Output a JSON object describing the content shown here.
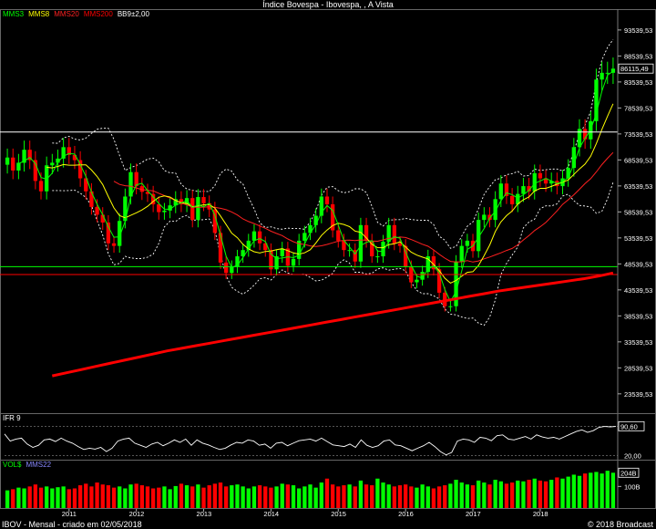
{
  "title": "Índice Bovespa - Ibovespa, , A Vista",
  "colors": {
    "up": "#00ff00",
    "down": "#ff0000",
    "mms3": "#00ff00",
    "mms8": "#ffff00",
    "mms20": "#ff2020",
    "mms200": "#ff0000",
    "bb": "#ffffff",
    "bg": "#000000"
  },
  "main_legend": {
    "mms3": "MMS3",
    "mms8": "MMS8",
    "mms20": "MMS20",
    "mms200": "MMS200",
    "bb": "BB9±2,00"
  },
  "ifr_legend": {
    "label": "IFR 9"
  },
  "vol_legend": {
    "label": "VOL$",
    "ma": "MMS22"
  },
  "footer": {
    "left": "IBOV - Mensal - criado em 02/05/2018",
    "right": "© 2018 Broadcast"
  },
  "chart_data": [
    {
      "type": "candlestick",
      "title": "Índice Bovespa - Ibovespa, , A Vista",
      "y_ticks": [
        "93539,53",
        "88539,53",
        "83539,53",
        "78539,53",
        "73539,53",
        "68539,53",
        "63539,53",
        "58539,53",
        "53539,53",
        "48539,53",
        "43539,53",
        "38539,53",
        "33539,53",
        "28539,53",
        "23539,53"
      ],
      "ylim": [
        20000,
        96500
      ],
      "x_ticks": [
        "2011",
        "2012",
        "2013",
        "2014",
        "2015",
        "2016",
        "2017",
        "2018"
      ],
      "last_value": "86115,49",
      "last_value_num": 86115,
      "horizontal_lines": [
        {
          "value": 73900,
          "color": "#ffffff"
        },
        {
          "value": 48000,
          "color": "#00ff00"
        },
        {
          "value": 46500,
          "color": "#ff0000"
        }
      ],
      "series": [
        {
          "name": "MMS3",
          "color": "#00ff00"
        },
        {
          "name": "MMS8",
          "color": "#ffff00"
        },
        {
          "name": "MMS20",
          "color": "#ff2020"
        },
        {
          "name": "MMS200",
          "color": "#ff0000"
        },
        {
          "name": "BB9±2,00",
          "color": "#ffffff"
        }
      ],
      "close": [
        69000,
        66500,
        68000,
        70500,
        68500,
        64500,
        62500,
        67500,
        68000,
        68800,
        71000,
        69500,
        68500,
        65000,
        62500,
        59500,
        58000,
        56500,
        52500,
        52000,
        56800,
        61500,
        66200,
        63500,
        62400,
        62000,
        60000,
        58500,
        58800,
        59800,
        61000,
        60000,
        61200,
        57000,
        61400,
        60200,
        59000,
        54500,
        48800,
        46800,
        48000,
        50000,
        51200,
        53000,
        54800,
        52500,
        51200,
        47500,
        50000,
        51500,
        48200,
        49500,
        53000,
        54500,
        56000,
        57800,
        61500,
        60000,
        55000,
        53000,
        51200,
        51200,
        49000,
        56000,
        53000,
        50000,
        50000,
        52800,
        56000,
        52500,
        52000,
        48000,
        45000,
        45500,
        47000,
        50000,
        47500,
        43000,
        40400,
        40400,
        49000,
        52000,
        53000,
        51000,
        57000,
        58000,
        57000,
        61000,
        64000,
        61600,
        60000,
        62000,
        63500,
        62500,
        66000,
        65000,
        64000,
        64500,
        63500,
        65000,
        67000,
        71000,
        74500,
        72500,
        76000,
        84000,
        85300,
        85300,
        86100
      ],
      "mms200": [
        27000,
        27600,
        28200,
        28800,
        29400,
        30000,
        30600,
        31200,
        31800,
        32300,
        32800,
        33300,
        33800,
        34300,
        34800,
        35300,
        35800,
        36300,
        36800,
        37300,
        37800,
        38300,
        38800,
        39300,
        39800,
        40300,
        40800,
        41300,
        41800,
        42300,
        42800,
        43300,
        43700,
        44100,
        44500,
        44900,
        45300,
        45700,
        46200,
        46800
      ],
      "ifr": {
        "ylim": [
          15,
          100
        ],
        "y_ticks": [
          "90,60",
          "20,00"
        ],
        "values": [
          72,
          55,
          60,
          62,
          48,
          40,
          45,
          58,
          60,
          54,
          62,
          55,
          50,
          42,
          35,
          38,
          36,
          40,
          30,
          38,
          55,
          60,
          62,
          50,
          45,
          40,
          48,
          52,
          44,
          50,
          58,
          52,
          60,
          45,
          58,
          50,
          46,
          40,
          35,
          38,
          46,
          52,
          50,
          58,
          55,
          45,
          48,
          38,
          50,
          52,
          44,
          50,
          56,
          58,
          60,
          55,
          62,
          54,
          46,
          44,
          42,
          48,
          40,
          58,
          45,
          40,
          44,
          55,
          58,
          46,
          44,
          38,
          32,
          38,
          44,
          52,
          42,
          30,
          22,
          28,
          55,
          60,
          58,
          52,
          64,
          62,
          56,
          68,
          70,
          60,
          58,
          62,
          66,
          60,
          70,
          65,
          62,
          64,
          60,
          66,
          72,
          78,
          82,
          76,
          80,
          88,
          90,
          89,
          90
        ],
        "last_value": "90,60"
      },
      "volume": {
        "y_ticks": [
          "100B"
        ],
        "last_value": "204B",
        "values": [
          0.45,
          0.48,
          0.52,
          0.5,
          0.55,
          0.6,
          0.52,
          0.55,
          0.5,
          0.53,
          0.55,
          0.48,
          0.5,
          0.58,
          0.62,
          0.55,
          0.65,
          0.6,
          0.58,
          0.52,
          0.55,
          0.5,
          0.6,
          0.62,
          0.58,
          0.55,
          0.5,
          0.52,
          0.55,
          0.48,
          0.56,
          0.62,
          0.58,
          0.55,
          0.6,
          0.52,
          0.58,
          0.62,
          0.65,
          0.55,
          0.58,
          0.6,
          0.55,
          0.5,
          0.55,
          0.58,
          0.55,
          0.52,
          0.55,
          0.62,
          0.6,
          0.58,
          0.5,
          0.55,
          0.6,
          0.52,
          0.65,
          0.75,
          0.6,
          0.55,
          0.58,
          0.6,
          0.55,
          0.7,
          0.6,
          0.58,
          0.75,
          0.65,
          0.6,
          0.55,
          0.58,
          0.6,
          0.55,
          0.52,
          0.6,
          0.55,
          0.5,
          0.55,
          0.58,
          0.62,
          0.72,
          0.65,
          0.6,
          0.58,
          0.7,
          0.65,
          0.6,
          0.72,
          0.68,
          0.62,
          0.65,
          0.7,
          0.68,
          0.72,
          0.75,
          0.7,
          0.68,
          0.72,
          0.78,
          0.75,
          0.8,
          0.85,
          0.82,
          0.88,
          0.9,
          0.92,
          0.88,
          0.95,
          0.9
        ]
      }
    }
  ]
}
